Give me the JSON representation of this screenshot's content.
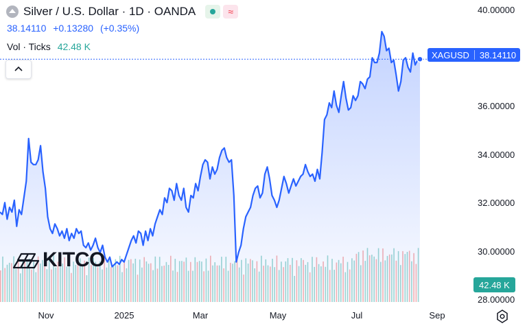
{
  "header": {
    "title": "Silver / U.S. Dollar · 1D · OANDA",
    "price": "38.14110",
    "change": "+0.13280",
    "change_pct": "(+0.35%)",
    "vol_label": "Vol · Ticks",
    "vol_value": "42.48 K",
    "status_color": "#26a69a",
    "wave_color": "#f23645"
  },
  "tags": {
    "symbol": "XAGUSD",
    "price": "38.14110",
    "vol": "42.48 K"
  },
  "logo": {
    "text": "KITCO"
  },
  "icons": {
    "collapse": "chevron-up-icon",
    "settings": "gear-icon",
    "logo": "kitco-gold-bars-icon",
    "badge": "wave-icon"
  },
  "colors": {
    "line": "#2962ff",
    "vol_up": "#26a69a",
    "vol_down": "#ef5350"
  },
  "chart_data": {
    "type": "area",
    "title": "Silver / U.S. Dollar · 1D · OANDA",
    "y_ticks": [
      "40.00000",
      "36.00000",
      "34.00000",
      "32.00000",
      "30.00000",
      "28.00000"
    ],
    "x_ticks": [
      "Nov",
      "2025",
      "Mar",
      "May",
      "Jul",
      "Sep"
    ],
    "ylim": [
      28,
      40.2
    ],
    "grid": false,
    "last_price": 38.1411,
    "series": [
      {
        "values": [
          31.7,
          31.6,
          32.1,
          31.4,
          31.9,
          31.7,
          32.2,
          31.1,
          31.8,
          31.6,
          32.3,
          33.0,
          34.8,
          33.8,
          33.7,
          33.7,
          33.9,
          34.5,
          33.4,
          32.7,
          31.5,
          31.0,
          30.8,
          31.2,
          31.0,
          30.7,
          30.9,
          30.6,
          31.0,
          30.5,
          30.8,
          30.6,
          31.0,
          30.8,
          30.9,
          30.3,
          30.2,
          30.4,
          30.1,
          30.3,
          30.6,
          30.2,
          30.0,
          30.3,
          29.8,
          29.6,
          29.8,
          29.4,
          29.5,
          29.6,
          29.5,
          29.7,
          29.6,
          29.9,
          30.2,
          30.5,
          30.7,
          30.4,
          30.9,
          30.8,
          30.3,
          30.9,
          30.5,
          31.0,
          30.7,
          31.2,
          31.5,
          31.8,
          31.6,
          32.3,
          32.1,
          32.7,
          32.6,
          32.2,
          32.9,
          32.4,
          32.2,
          32.7,
          31.9,
          31.7,
          32.4,
          32.3,
          32.9,
          32.6,
          33.2,
          33.7,
          33.9,
          33.8,
          33.1,
          33.6,
          33.3,
          33.5,
          34.0,
          34.3,
          34.4,
          34.0,
          33.8,
          33.9,
          32.4,
          29.6,
          30.0,
          30.3,
          31.0,
          31.5,
          31.7,
          31.9,
          32.4,
          32.7,
          32.8,
          32.3,
          32.5,
          33.3,
          33.6,
          33.1,
          32.4,
          32.2,
          31.9,
          32.2,
          32.7,
          33.2,
          32.9,
          32.5,
          32.8,
          33.1,
          32.8,
          33.0,
          33.2,
          33.3,
          33.7,
          33.4,
          33.2,
          33.3,
          33.0,
          33.5,
          33.1,
          34.2,
          35.6,
          35.8,
          36.3,
          36.1,
          36.8,
          36.2,
          35.9,
          36.6,
          37.2,
          36.5,
          36.0,
          36.1,
          36.6,
          36.4,
          36.6,
          37.2,
          37.1,
          36.9,
          37.3,
          37.4,
          38.2,
          38.0,
          38.0,
          38.4,
          39.3,
          39.1,
          38.5,
          38.6,
          38.0,
          38.1,
          37.5,
          36.8,
          37.2,
          38.1,
          38.2,
          37.8,
          37.6,
          38.4,
          37.9,
          38.1,
          38.14
        ]
      }
    ]
  }
}
